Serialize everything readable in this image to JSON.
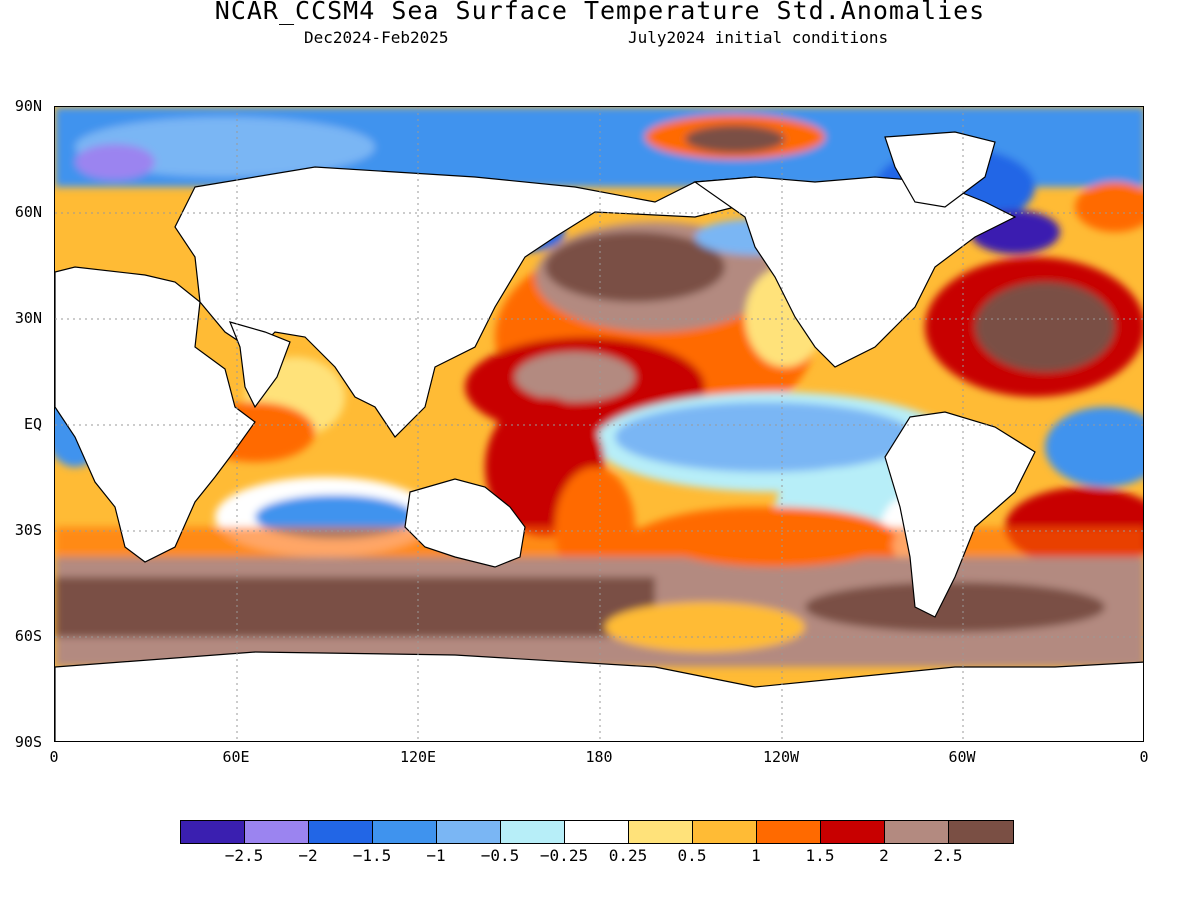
{
  "title": "NCAR_CCSM4 Sea Surface Temperature Std.Anomalies",
  "subtitle_left": "Dec2024-Feb2025",
  "subtitle_right": "July2024 initial conditions",
  "lat_labels": [
    "90N",
    "60N",
    "30N",
    "EQ",
    "30S",
    "60S",
    "90S"
  ],
  "lon_labels": [
    "0",
    "60E",
    "120E",
    "180",
    "120W",
    "60W",
    "0"
  ],
  "colorbar": {
    "colors": [
      "#3a1fb0",
      "#9b84f0",
      "#2266e6",
      "#3f93ee",
      "#7ab6f4",
      "#b7eef8",
      "#ffffff",
      "#ffe27a",
      "#ffbb35",
      "#ff6a00",
      "#c80000",
      "#b38a80",
      "#7a4f44"
    ],
    "labels": [
      "−2.5",
      "−2",
      "−1.5",
      "−1",
      "−0.5",
      "−0.25",
      "0.25",
      "0.5",
      "1",
      "1.5",
      "2",
      "2.5"
    ]
  }
}
